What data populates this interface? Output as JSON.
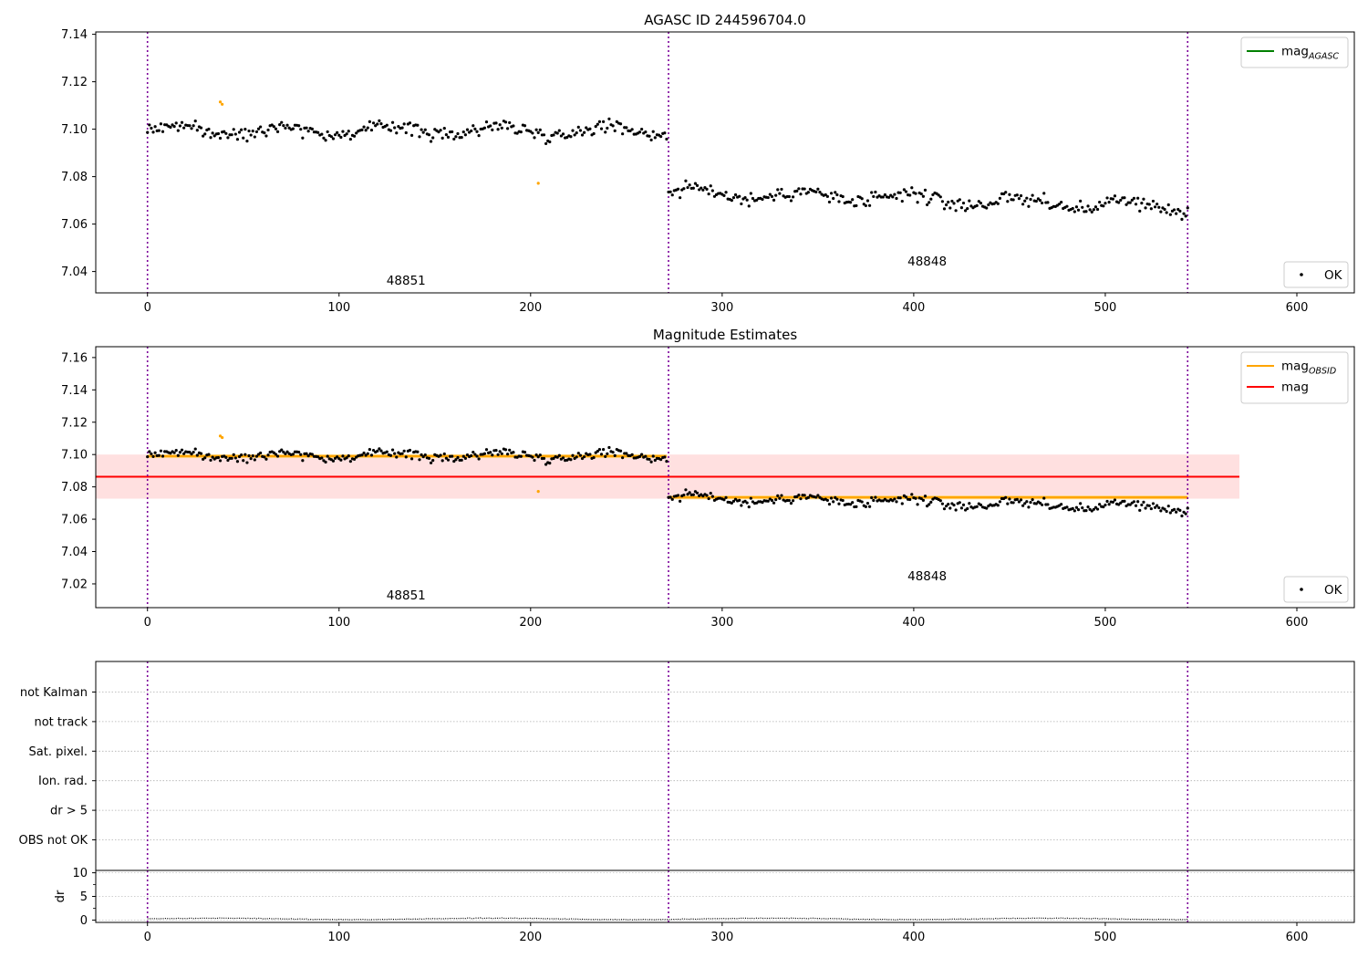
{
  "chart_data": [
    {
      "type": "scatter",
      "title": "AGASC ID 244596704.0",
      "xlim": [
        -27,
        630
      ],
      "ylim": [
        7.031,
        7.141
      ],
      "xticks": [
        0,
        100,
        200,
        300,
        400,
        500,
        600
      ],
      "yticks": [
        7.04,
        7.06,
        7.08,
        7.1,
        7.12,
        7.14
      ],
      "ytick_labels": [
        "7.04",
        "7.06",
        "7.08",
        "7.10",
        "7.12",
        "7.14"
      ],
      "obs_boundaries": [
        0,
        272,
        543
      ],
      "obs_labels": [
        {
          "text": "48851",
          "x": 135,
          "y": 7.0345
        },
        {
          "text": "48848",
          "x": 407,
          "y": 7.0425
        }
      ],
      "legend_top": [
        {
          "label_main": "mag",
          "label_sub": "AGASC",
          "color": "#008000"
        }
      ],
      "legend_bottom": [
        {
          "label": "OK",
          "marker": "dot"
        }
      ],
      "series": [
        {
          "name": "OK",
          "segments": [
            {
              "x_start": 0,
              "x_end": 271,
              "mean": 7.0995,
              "sd": 0.0032
            },
            {
              "x_start": 272,
              "x_end": 543,
              "mean": 7.0735,
              "sd": 0.0036,
              "trend": -0.0065
            }
          ]
        }
      ],
      "flagged_points": {
        "color": "#ffa500",
        "x": [
          38,
          39,
          204
        ],
        "y": [
          7.1115,
          7.1105,
          7.0772
        ]
      }
    },
    {
      "type": "scatter",
      "title": "Magnitude Estimates",
      "xlim": [
        -27,
        630
      ],
      "ylim": [
        7.0053,
        7.1667
      ],
      "xticks": [
        0,
        100,
        200,
        300,
        400,
        500,
        600
      ],
      "yticks": [
        7.02,
        7.04,
        7.06,
        7.08,
        7.1,
        7.12,
        7.14,
        7.16
      ],
      "ytick_labels": [
        "7.02",
        "7.04",
        "7.06",
        "7.08",
        "7.10",
        "7.12",
        "7.14",
        "7.16"
      ],
      "obs_boundaries": [
        0,
        272,
        543
      ],
      "obs_labels": [
        {
          "text": "48851",
          "x": 135,
          "y": 7.0105
        },
        {
          "text": "48848",
          "x": 407,
          "y": 7.0222
        }
      ],
      "mag_line": {
        "value": 7.0863,
        "x_range": [
          -27,
          570
        ],
        "band": [
          7.0727,
          7.1
        ],
        "color": "#ff0000",
        "band_color": "#ffe0e0"
      },
      "obsid_mags": [
        {
          "x_start": 0,
          "x_end": 271,
          "value": 7.099,
          "color": "#ffa500"
        },
        {
          "x_start": 272,
          "x_end": 543,
          "value": 7.0735,
          "color": "#ffa500"
        }
      ],
      "legend_top": [
        {
          "label_main": "mag",
          "label_sub": "OBSID",
          "color": "#ffa500"
        },
        {
          "label_main": "mag",
          "label_sub": "",
          "color": "#ff0000"
        }
      ],
      "legend_bottom": [
        {
          "label": "OK",
          "marker": "dot"
        }
      ],
      "series": [
        {
          "name": "OK",
          "segments": [
            {
              "x_start": 0,
              "x_end": 271,
              "mean": 7.0995,
              "sd": 0.0032
            },
            {
              "x_start": 272,
              "x_end": 543,
              "mean": 7.0735,
              "sd": 0.0036,
              "trend": -0.0065
            }
          ]
        }
      ],
      "flagged_points": {
        "color": "#ffa500",
        "x": [
          38,
          39,
          204
        ],
        "y": [
          7.1115,
          7.1105,
          7.0772
        ]
      }
    },
    {
      "type": "scatter",
      "title": "",
      "xlim": [
        -27,
        630
      ],
      "ylim": [
        0,
        7
      ],
      "categories": [
        "not Kalman",
        "not track",
        "Sat. pixel.",
        "Ion. rad.",
        "dr > 5",
        "OBS not OK"
      ],
      "obs_boundaries": [
        0,
        272,
        543
      ],
      "grid": true
    },
    {
      "type": "line",
      "title": "",
      "ylabel": "dr",
      "xlim": [
        -27,
        630
      ],
      "ylim": [
        -0.5,
        10.5
      ],
      "xticks": [
        0,
        100,
        200,
        300,
        400,
        500,
        600
      ],
      "yticks": [
        0,
        5,
        10
      ],
      "ytick_labels": [
        "0",
        "5",
        "10"
      ],
      "obs_boundaries": [
        0,
        272,
        543
      ],
      "series": [
        {
          "name": "dr",
          "x_start": 0,
          "x_end": 543,
          "mean": 0.25,
          "amplitude": 0.25
        }
      ]
    }
  ]
}
